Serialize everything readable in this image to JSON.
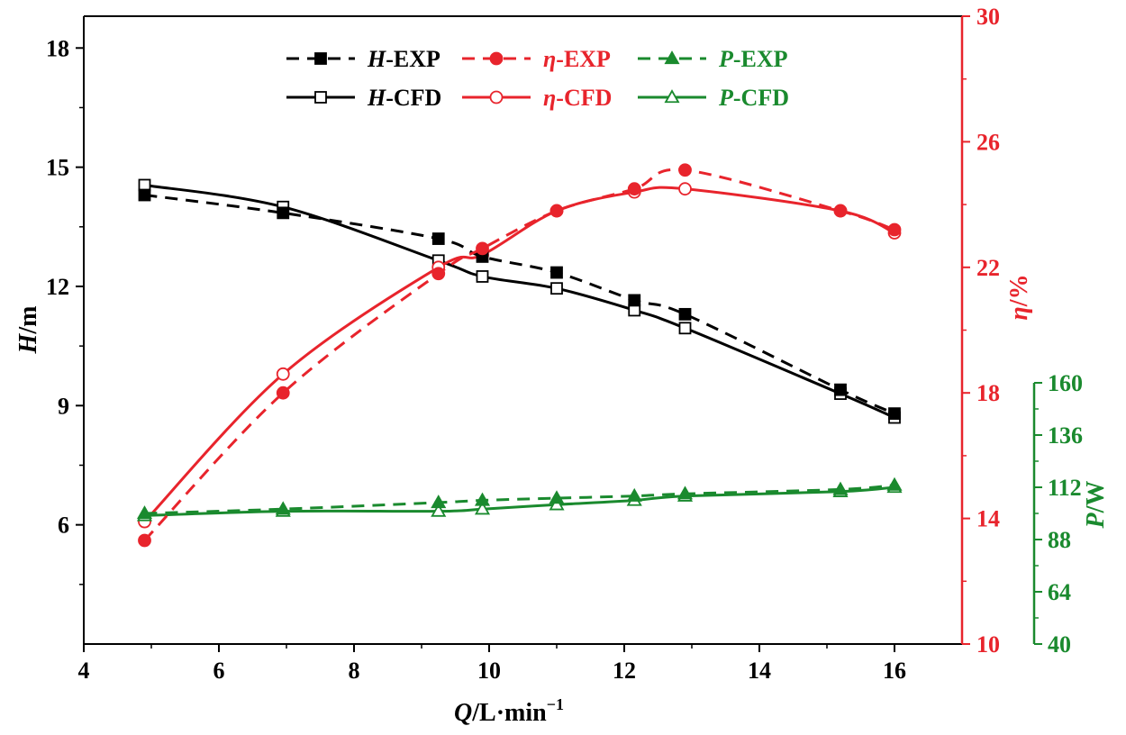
{
  "chart_data": {
    "type": "line",
    "xlabel": "Q/L·min⁻¹",
    "xlabel_parts": {
      "var": "Q",
      "unit": "/L·min",
      "sup": "−1"
    },
    "xlim": [
      4,
      17
    ],
    "xticks": [
      4,
      6,
      8,
      10,
      12,
      14,
      16
    ],
    "axes": {
      "H": {
        "label": "H/m",
        "label_var": "H",
        "label_unit": "/m",
        "ylim": [
          3,
          18.8
        ],
        "ticks": [
          6,
          9,
          12,
          15,
          18
        ],
        "color": "#000000"
      },
      "eta": {
        "label": "η/%",
        "label_var": "η",
        "label_unit": "/%",
        "ylim": [
          10,
          30
        ],
        "ticks": [
          10,
          14,
          18,
          22,
          26,
          30
        ],
        "color": "#e8242c"
      },
      "P": {
        "label": "P/W",
        "label_var": "P",
        "label_unit": "/W",
        "ylim": [
          40,
          160
        ],
        "ticks": [
          40,
          64,
          88,
          112,
          136,
          160
        ],
        "color": "#1a8a2e"
      }
    },
    "series": [
      {
        "name": "H-EXP",
        "name_var": "H",
        "name_suffix": "-EXP",
        "axis": "H",
        "style": "dashed",
        "marker": "square-filled",
        "x": [
          4.9,
          6.95,
          9.25,
          9.9,
          11.0,
          12.15,
          12.9,
          15.2,
          16.0
        ],
        "y": [
          14.3,
          13.85,
          13.2,
          12.75,
          12.35,
          11.65,
          11.3,
          9.4,
          8.8
        ]
      },
      {
        "name": "η-EXP",
        "name_var": "η",
        "name_suffix": "-EXP",
        "axis": "eta",
        "style": "dashed",
        "marker": "circle-filled",
        "x": [
          4.9,
          6.95,
          9.25,
          9.9,
          11.0,
          12.15,
          12.9,
          15.2,
          16.0
        ],
        "y": [
          13.3,
          18.0,
          21.8,
          22.6,
          23.8,
          24.5,
          25.1,
          23.8,
          23.2
        ]
      },
      {
        "name": "P-EXP",
        "name_var": "P",
        "name_suffix": "-EXP",
        "axis": "P",
        "style": "dashed",
        "marker": "triangle-filled",
        "x": [
          4.9,
          6.95,
          9.25,
          9.9,
          11.0,
          12.15,
          12.9,
          15.2,
          16.0
        ],
        "y": [
          100,
          102,
          105,
          106,
          107,
          108,
          109,
          111,
          113
        ]
      },
      {
        "name": "H-CFD",
        "name_var": "H",
        "name_suffix": "-CFD",
        "axis": "H",
        "style": "solid",
        "marker": "square-open",
        "x": [
          4.9,
          6.95,
          9.25,
          9.9,
          11.0,
          12.15,
          12.9,
          15.2,
          16.0
        ],
        "y": [
          14.55,
          14.0,
          12.65,
          12.25,
          11.95,
          11.4,
          10.95,
          9.3,
          8.7
        ]
      },
      {
        "name": "η-CFD",
        "name_var": "η",
        "name_suffix": "-CFD",
        "axis": "eta",
        "style": "solid",
        "marker": "circle-open",
        "x": [
          4.9,
          6.95,
          9.25,
          9.9,
          11.0,
          12.15,
          12.9,
          15.2,
          16.0
        ],
        "y": [
          13.9,
          18.6,
          22.0,
          22.4,
          23.8,
          24.4,
          24.5,
          23.8,
          23.1
        ]
      },
      {
        "name": "P-CFD",
        "name_var": "P",
        "name_suffix": "-CFD",
        "axis": "P",
        "style": "solid",
        "marker": "triangle-open",
        "x": [
          4.9,
          6.95,
          9.25,
          9.9,
          11.0,
          12.15,
          12.9,
          15.2,
          16.0
        ],
        "y": [
          99,
          101,
          101,
          102,
          104,
          106,
          108,
          110,
          112
        ]
      }
    ]
  }
}
